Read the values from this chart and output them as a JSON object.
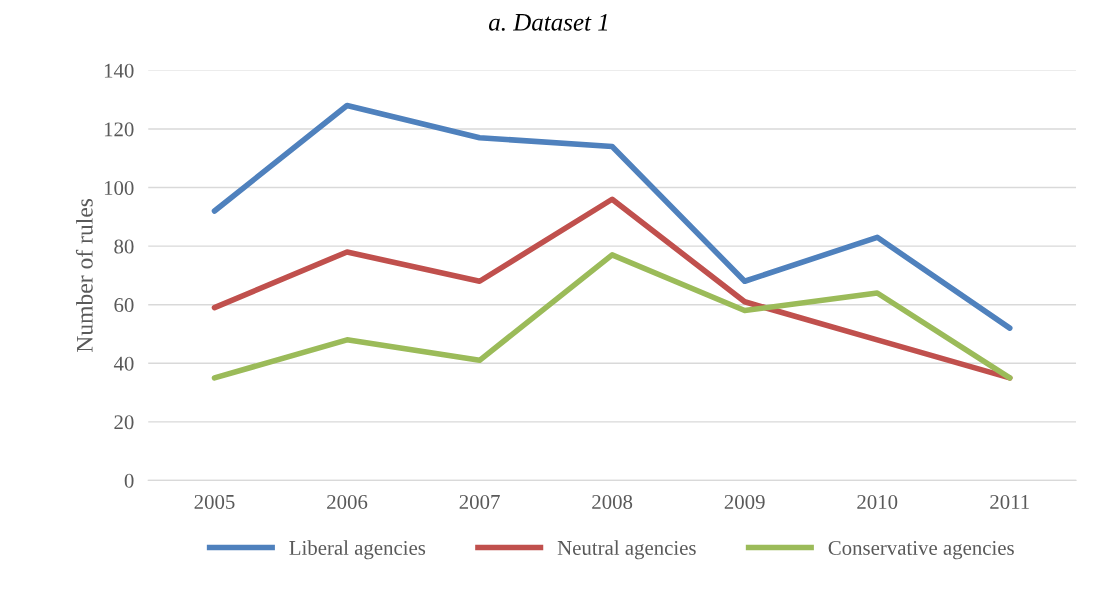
{
  "chart_data": {
    "type": "line",
    "title": "a. Dataset 1",
    "ylabel": "Number of rules",
    "categories": [
      "2005",
      "2006",
      "2007",
      "2008",
      "2009",
      "2010",
      "2011"
    ],
    "series": [
      {
        "name": "Liberal agencies",
        "color": "#4f81bd",
        "values": [
          92,
          128,
          117,
          114,
          68,
          83,
          52
        ]
      },
      {
        "name": "Neutral agencies",
        "color": "#c0504d",
        "values": [
          59,
          78,
          68,
          96,
          61,
          48,
          35
        ]
      },
      {
        "name": "Conservative agencies",
        "color": "#9bbb59",
        "values": [
          35,
          48,
          41,
          77,
          58,
          64,
          35
        ]
      }
    ],
    "ylim": [
      0,
      140
    ],
    "yticks": [
      0,
      20,
      40,
      60,
      80,
      100,
      120,
      140
    ],
    "grid": "y",
    "legend": "bottom",
    "marker": "none",
    "line_style": "solid"
  }
}
